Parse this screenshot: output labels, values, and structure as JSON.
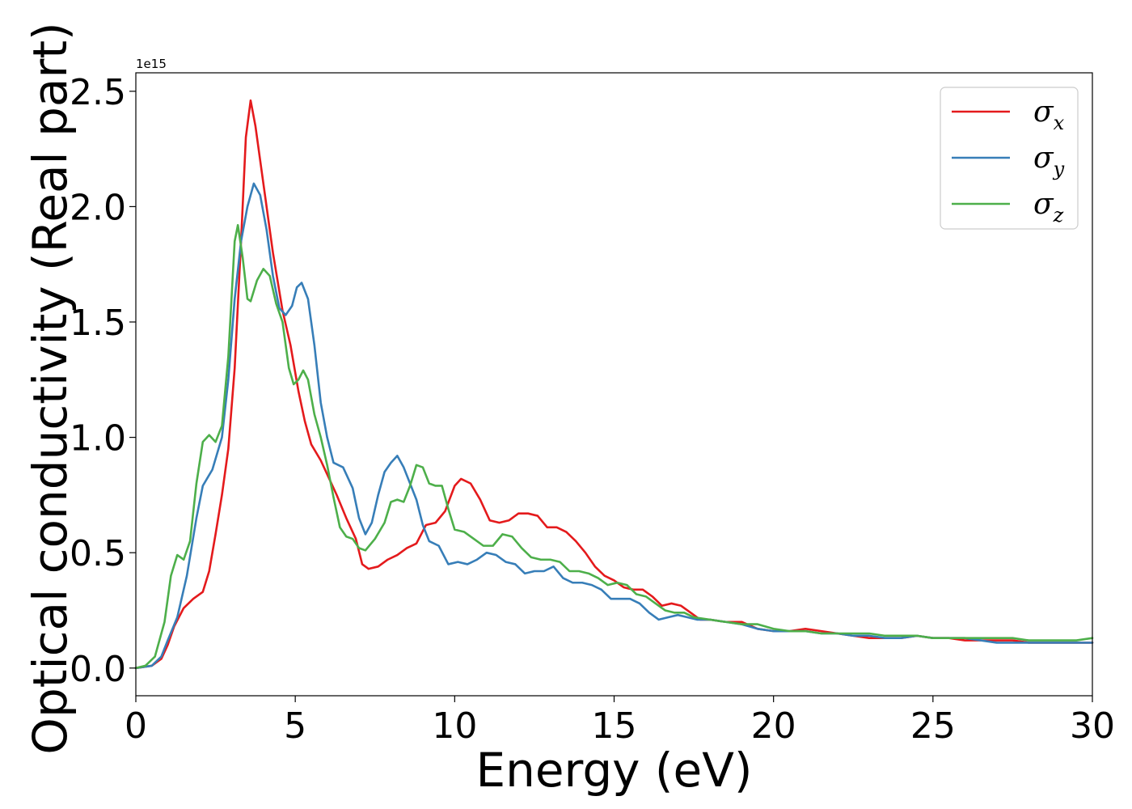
{
  "chart_data": {
    "type": "line",
    "xlabel": "Energy (eV)",
    "ylabel": "Optical conductivity (Real part)",
    "y_offset_label": "1e15",
    "xlim": [
      0,
      30
    ],
    "ylim": [
      -0.12,
      2.58
    ],
    "x_ticks": [
      0,
      5,
      10,
      15,
      20,
      25,
      30
    ],
    "x_tick_labels": [
      "0",
      "5",
      "10",
      "15",
      "20",
      "25",
      "30"
    ],
    "y_ticks": [
      0.0,
      0.5,
      1.0,
      1.5,
      2.0,
      2.5
    ],
    "y_tick_labels": [
      "0.0",
      "0.5",
      "1.0",
      "1.5",
      "2.0",
      "2.5"
    ],
    "grid": false,
    "legend_position": "top-right",
    "series": [
      {
        "name": "σ",
        "subscript": "x",
        "color": "#e41a1c",
        "points": [
          [
            0,
            0
          ],
          [
            0.5,
            0.01
          ],
          [
            0.8,
            0.04
          ],
          [
            1.0,
            0.1
          ],
          [
            1.2,
            0.18
          ],
          [
            1.5,
            0.26
          ],
          [
            1.8,
            0.3
          ],
          [
            2.1,
            0.33
          ],
          [
            2.3,
            0.42
          ],
          [
            2.5,
            0.58
          ],
          [
            2.7,
            0.75
          ],
          [
            2.9,
            0.95
          ],
          [
            3.1,
            1.3
          ],
          [
            3.3,
            1.85
          ],
          [
            3.45,
            2.3
          ],
          [
            3.6,
            2.46
          ],
          [
            3.75,
            2.35
          ],
          [
            3.9,
            2.2
          ],
          [
            4.1,
            2.0
          ],
          [
            4.3,
            1.8
          ],
          [
            4.6,
            1.55
          ],
          [
            4.85,
            1.4
          ],
          [
            5.1,
            1.2
          ],
          [
            5.3,
            1.07
          ],
          [
            5.5,
            0.97
          ],
          [
            5.8,
            0.9
          ],
          [
            6.0,
            0.84
          ],
          [
            6.3,
            0.75
          ],
          [
            6.6,
            0.65
          ],
          [
            6.9,
            0.56
          ],
          [
            7.1,
            0.45
          ],
          [
            7.3,
            0.43
          ],
          [
            7.6,
            0.44
          ],
          [
            7.9,
            0.47
          ],
          [
            8.2,
            0.49
          ],
          [
            8.5,
            0.52
          ],
          [
            8.8,
            0.54
          ],
          [
            9.1,
            0.62
          ],
          [
            9.4,
            0.63
          ],
          [
            9.7,
            0.68
          ],
          [
            10.0,
            0.79
          ],
          [
            10.2,
            0.82
          ],
          [
            10.5,
            0.8
          ],
          [
            10.8,
            0.73
          ],
          [
            11.1,
            0.64
          ],
          [
            11.4,
            0.63
          ],
          [
            11.7,
            0.64
          ],
          [
            12.0,
            0.67
          ],
          [
            12.3,
            0.67
          ],
          [
            12.6,
            0.66
          ],
          [
            12.9,
            0.61
          ],
          [
            13.2,
            0.61
          ],
          [
            13.5,
            0.59
          ],
          [
            13.8,
            0.55
          ],
          [
            14.1,
            0.5
          ],
          [
            14.4,
            0.44
          ],
          [
            14.7,
            0.4
          ],
          [
            15.0,
            0.38
          ],
          [
            15.3,
            0.35
          ],
          [
            15.6,
            0.34
          ],
          [
            15.9,
            0.34
          ],
          [
            16.2,
            0.31
          ],
          [
            16.5,
            0.27
          ],
          [
            16.8,
            0.28
          ],
          [
            17.1,
            0.27
          ],
          [
            17.4,
            0.24
          ],
          [
            17.7,
            0.21
          ],
          [
            18.0,
            0.21
          ],
          [
            18.5,
            0.2
          ],
          [
            19.0,
            0.2
          ],
          [
            19.5,
            0.17
          ],
          [
            20.0,
            0.16
          ],
          [
            20.5,
            0.16
          ],
          [
            21.0,
            0.17
          ],
          [
            21.5,
            0.16
          ],
          [
            22.0,
            0.15
          ],
          [
            22.5,
            0.14
          ],
          [
            23.0,
            0.13
          ],
          [
            23.5,
            0.13
          ],
          [
            24.0,
            0.13
          ],
          [
            24.5,
            0.14
          ],
          [
            25.0,
            0.13
          ],
          [
            25.5,
            0.13
          ],
          [
            26.0,
            0.12
          ],
          [
            26.5,
            0.12
          ],
          [
            27.0,
            0.12
          ],
          [
            27.5,
            0.12
          ],
          [
            28.0,
            0.11
          ],
          [
            28.5,
            0.11
          ],
          [
            29.0,
            0.11
          ],
          [
            29.5,
            0.11
          ],
          [
            30.0,
            0.11
          ]
        ]
      },
      {
        "name": "σ",
        "subscript": "y",
        "color": "#377eb8",
        "points": [
          [
            0,
            0
          ],
          [
            0.5,
            0.01
          ],
          [
            0.8,
            0.05
          ],
          [
            1.0,
            0.12
          ],
          [
            1.3,
            0.22
          ],
          [
            1.6,
            0.4
          ],
          [
            1.9,
            0.65
          ],
          [
            2.1,
            0.79
          ],
          [
            2.4,
            0.86
          ],
          [
            2.7,
            1.0
          ],
          [
            2.9,
            1.25
          ],
          [
            3.1,
            1.6
          ],
          [
            3.3,
            1.85
          ],
          [
            3.5,
            2.0
          ],
          [
            3.7,
            2.1
          ],
          [
            3.9,
            2.05
          ],
          [
            4.1,
            1.9
          ],
          [
            4.3,
            1.7
          ],
          [
            4.5,
            1.56
          ],
          [
            4.7,
            1.53
          ],
          [
            4.9,
            1.57
          ],
          [
            5.05,
            1.65
          ],
          [
            5.2,
            1.67
          ],
          [
            5.4,
            1.6
          ],
          [
            5.6,
            1.4
          ],
          [
            5.8,
            1.15
          ],
          [
            6.0,
            1.0
          ],
          [
            6.2,
            0.89
          ],
          [
            6.5,
            0.87
          ],
          [
            6.8,
            0.78
          ],
          [
            7.0,
            0.65
          ],
          [
            7.2,
            0.58
          ],
          [
            7.4,
            0.63
          ],
          [
            7.6,
            0.75
          ],
          [
            7.8,
            0.85
          ],
          [
            8.0,
            0.89
          ],
          [
            8.2,
            0.92
          ],
          [
            8.4,
            0.87
          ],
          [
            8.6,
            0.8
          ],
          [
            8.8,
            0.73
          ],
          [
            9.0,
            0.62
          ],
          [
            9.2,
            0.55
          ],
          [
            9.5,
            0.53
          ],
          [
            9.8,
            0.45
          ],
          [
            10.1,
            0.46
          ],
          [
            10.4,
            0.45
          ],
          [
            10.7,
            0.47
          ],
          [
            11.0,
            0.5
          ],
          [
            11.3,
            0.49
          ],
          [
            11.6,
            0.46
          ],
          [
            11.9,
            0.45
          ],
          [
            12.2,
            0.41
          ],
          [
            12.5,
            0.42
          ],
          [
            12.8,
            0.42
          ],
          [
            13.1,
            0.44
          ],
          [
            13.4,
            0.39
          ],
          [
            13.7,
            0.37
          ],
          [
            14.0,
            0.37
          ],
          [
            14.3,
            0.36
          ],
          [
            14.6,
            0.34
          ],
          [
            14.9,
            0.3
          ],
          [
            15.2,
            0.3
          ],
          [
            15.5,
            0.3
          ],
          [
            15.8,
            0.28
          ],
          [
            16.1,
            0.24
          ],
          [
            16.4,
            0.21
          ],
          [
            16.7,
            0.22
          ],
          [
            17.0,
            0.23
          ],
          [
            17.3,
            0.22
          ],
          [
            17.6,
            0.21
          ],
          [
            18.0,
            0.21
          ],
          [
            18.5,
            0.2
          ],
          [
            19.0,
            0.19
          ],
          [
            19.5,
            0.17
          ],
          [
            20.0,
            0.16
          ],
          [
            20.5,
            0.16
          ],
          [
            21.0,
            0.16
          ],
          [
            21.5,
            0.15
          ],
          [
            22.0,
            0.15
          ],
          [
            22.5,
            0.14
          ],
          [
            23.0,
            0.14
          ],
          [
            23.5,
            0.13
          ],
          [
            24.0,
            0.13
          ],
          [
            24.5,
            0.14
          ],
          [
            25.0,
            0.13
          ],
          [
            25.5,
            0.13
          ],
          [
            26.0,
            0.13
          ],
          [
            26.5,
            0.12
          ],
          [
            27.0,
            0.11
          ],
          [
            27.5,
            0.11
          ],
          [
            28.0,
            0.11
          ],
          [
            28.5,
            0.11
          ],
          [
            29.0,
            0.11
          ],
          [
            29.5,
            0.11
          ],
          [
            30.0,
            0.11
          ]
        ]
      },
      {
        "name": "σ",
        "subscript": "z",
        "color": "#4daf4a",
        "points": [
          [
            0,
            0
          ],
          [
            0.3,
            0.01
          ],
          [
            0.6,
            0.05
          ],
          [
            0.9,
            0.2
          ],
          [
            1.1,
            0.4
          ],
          [
            1.3,
            0.49
          ],
          [
            1.5,
            0.47
          ],
          [
            1.7,
            0.55
          ],
          [
            1.9,
            0.8
          ],
          [
            2.1,
            0.98
          ],
          [
            2.3,
            1.01
          ],
          [
            2.5,
            0.98
          ],
          [
            2.7,
            1.05
          ],
          [
            2.9,
            1.35
          ],
          [
            3.1,
            1.85
          ],
          [
            3.2,
            1.92
          ],
          [
            3.35,
            1.78
          ],
          [
            3.5,
            1.6
          ],
          [
            3.6,
            1.59
          ],
          [
            3.8,
            1.68
          ],
          [
            4.0,
            1.73
          ],
          [
            4.2,
            1.7
          ],
          [
            4.4,
            1.58
          ],
          [
            4.6,
            1.5
          ],
          [
            4.8,
            1.3
          ],
          [
            4.95,
            1.23
          ],
          [
            5.1,
            1.25
          ],
          [
            5.25,
            1.29
          ],
          [
            5.4,
            1.25
          ],
          [
            5.6,
            1.1
          ],
          [
            5.8,
            1.0
          ],
          [
            6.0,
            0.88
          ],
          [
            6.2,
            0.74
          ],
          [
            6.4,
            0.61
          ],
          [
            6.6,
            0.57
          ],
          [
            6.8,
            0.56
          ],
          [
            7.0,
            0.52
          ],
          [
            7.2,
            0.51
          ],
          [
            7.5,
            0.56
          ],
          [
            7.8,
            0.63
          ],
          [
            8.0,
            0.72
          ],
          [
            8.2,
            0.73
          ],
          [
            8.4,
            0.72
          ],
          [
            8.6,
            0.79
          ],
          [
            8.8,
            0.88
          ],
          [
            9.0,
            0.87
          ],
          [
            9.2,
            0.8
          ],
          [
            9.4,
            0.79
          ],
          [
            9.6,
            0.79
          ],
          [
            9.8,
            0.69
          ],
          [
            10.0,
            0.6
          ],
          [
            10.3,
            0.59
          ],
          [
            10.6,
            0.56
          ],
          [
            10.9,
            0.53
          ],
          [
            11.2,
            0.53
          ],
          [
            11.5,
            0.58
          ],
          [
            11.8,
            0.57
          ],
          [
            12.1,
            0.52
          ],
          [
            12.4,
            0.48
          ],
          [
            12.7,
            0.47
          ],
          [
            13.0,
            0.47
          ],
          [
            13.3,
            0.46
          ],
          [
            13.6,
            0.42
          ],
          [
            13.9,
            0.42
          ],
          [
            14.2,
            0.41
          ],
          [
            14.5,
            0.39
          ],
          [
            14.8,
            0.36
          ],
          [
            15.1,
            0.37
          ],
          [
            15.4,
            0.36
          ],
          [
            15.7,
            0.32
          ],
          [
            16.0,
            0.31
          ],
          [
            16.3,
            0.28
          ],
          [
            16.6,
            0.25
          ],
          [
            16.9,
            0.24
          ],
          [
            17.2,
            0.24
          ],
          [
            17.5,
            0.22
          ],
          [
            18.0,
            0.21
          ],
          [
            18.5,
            0.2
          ],
          [
            19.0,
            0.19
          ],
          [
            19.5,
            0.19
          ],
          [
            20.0,
            0.17
          ],
          [
            20.5,
            0.16
          ],
          [
            21.0,
            0.16
          ],
          [
            21.5,
            0.15
          ],
          [
            22.0,
            0.15
          ],
          [
            22.5,
            0.15
          ],
          [
            23.0,
            0.15
          ],
          [
            23.5,
            0.14
          ],
          [
            24.0,
            0.14
          ],
          [
            24.5,
            0.14
          ],
          [
            25.0,
            0.13
          ],
          [
            25.5,
            0.13
          ],
          [
            26.0,
            0.13
          ],
          [
            26.5,
            0.13
          ],
          [
            27.0,
            0.13
          ],
          [
            27.5,
            0.13
          ],
          [
            28.0,
            0.12
          ],
          [
            28.5,
            0.12
          ],
          [
            29.0,
            0.12
          ],
          [
            29.5,
            0.12
          ],
          [
            30.0,
            0.13
          ]
        ]
      }
    ]
  }
}
